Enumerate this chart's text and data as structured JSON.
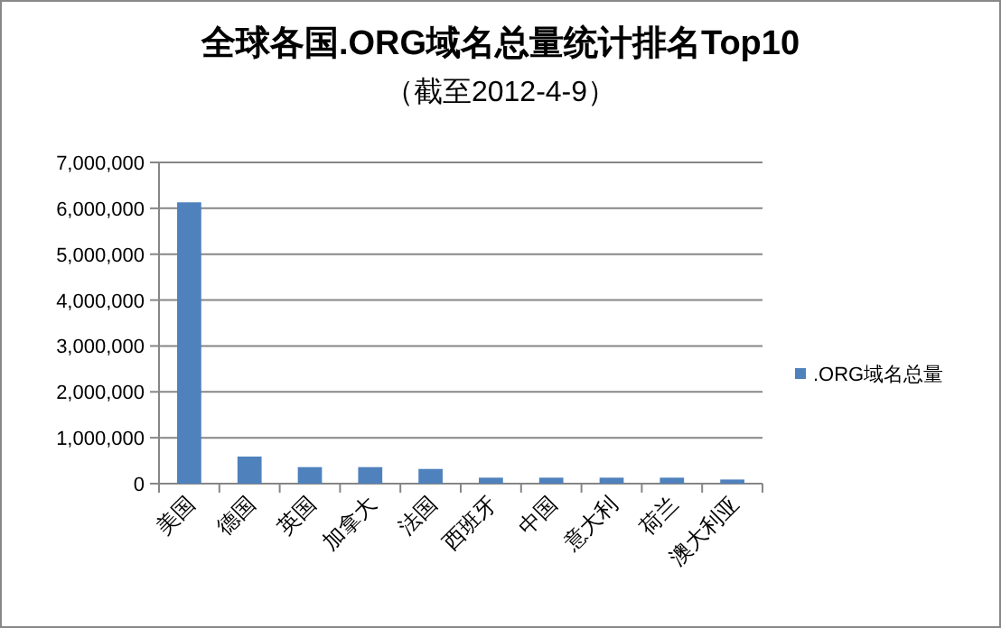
{
  "chart_data": {
    "type": "bar",
    "title": "全球各国.ORG域名总量统计排名Top10",
    "subtitle": "（截至2012-4-9）",
    "categories": [
      "美国",
      "德国",
      "英国",
      "加拿大",
      "法国",
      "西班牙",
      "中国",
      "意大利",
      "荷兰",
      "澳大利亚"
    ],
    "series": [
      {
        "name": ".ORG域名总量",
        "color": "#4f81bd",
        "values": [
          6130000,
          590000,
          360000,
          360000,
          320000,
          130000,
          130000,
          130000,
          130000,
          90000
        ]
      }
    ],
    "ylim": [
      0,
      7000000
    ],
    "yticks": [
      {
        "value": 0,
        "label": "0"
      },
      {
        "value": 1000000,
        "label": "1,000,000"
      },
      {
        "value": 2000000,
        "label": "2,000,000"
      },
      {
        "value": 3000000,
        "label": "3,000,000"
      },
      {
        "value": 4000000,
        "label": "4,000,000"
      },
      {
        "value": 5000000,
        "label": "5,000,000"
      },
      {
        "value": 6000000,
        "label": "6,000,000"
      },
      {
        "value": 7000000,
        "label": "7,000,000"
      }
    ],
    "grid": "y",
    "legend": "right"
  }
}
